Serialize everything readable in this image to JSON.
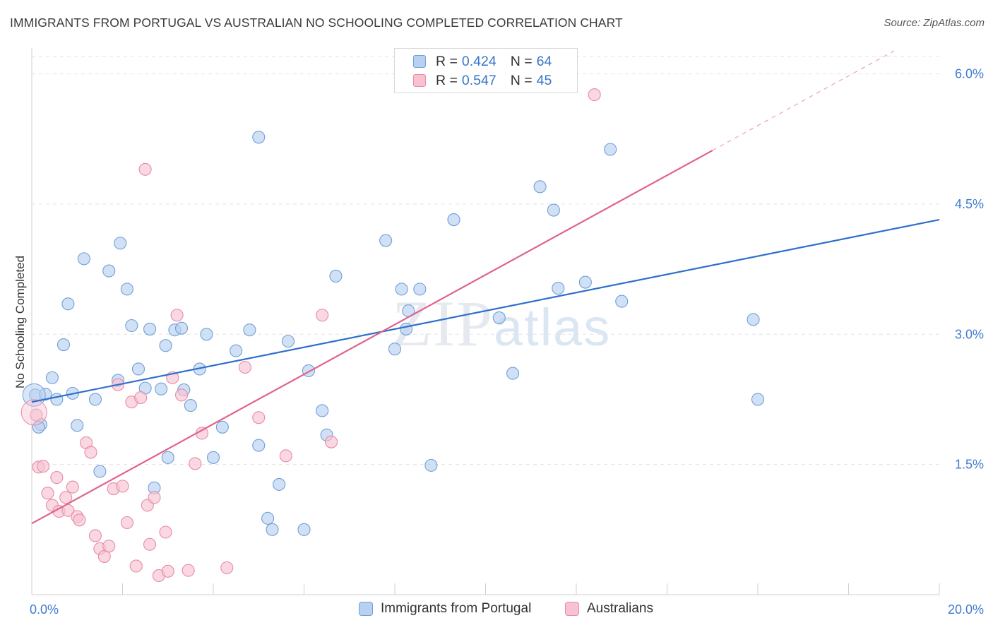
{
  "title": "IMMIGRANTS FROM PORTUGAL VS AUSTRALIAN NO SCHOOLING COMPLETED CORRELATION CHART",
  "source": "Source: ZipAtlas.com",
  "watermark": {
    "zip": "ZIP",
    "atlas": "atlas"
  },
  "legend": [
    {
      "r_label": "R =",
      "r_value": "0.424",
      "n_label": "N =",
      "n_value": "64"
    },
    {
      "r_label": "R =",
      "r_value": "0.547",
      "n_label": "N =",
      "n_value": "45"
    }
  ],
  "bottom_legend": [
    "Immigrants from Portugal",
    "Australians"
  ],
  "colors": {
    "blue_fill": "#b9d1f0",
    "blue_stroke": "#6f9fd9",
    "blue_line": "#2e6fcc",
    "pink_fill": "#f7c3d2",
    "pink_stroke": "#e88aa6",
    "pink_line": "#e0628c",
    "axis_text": "#3f7bd1",
    "grid": "#e3e3e3"
  },
  "chart_data": {
    "type": "scatter",
    "title": "IMMIGRANTS FROM PORTUGAL VS AUSTRALIAN NO SCHOOLING COMPLETED CORRELATION CHART",
    "xlabel": "",
    "ylabel": "No Schooling Completed",
    "xlim": [
      0,
      20
    ],
    "ylim": [
      0,
      6.2
    ],
    "x_tick_labels": [
      "0.0%",
      "20.0%"
    ],
    "y_ticks": [
      1.5,
      3.0,
      4.5,
      6.0
    ],
    "y_tick_labels": [
      "1.5%",
      "3.0%",
      "4.5%",
      "6.0%"
    ],
    "grid": true,
    "legend_position": "top-center",
    "series": [
      {
        "name": "Immigrants from Portugal",
        "color": "#6f9fd9",
        "trend": {
          "x": [
            0,
            20
          ],
          "y": [
            2.22,
            4.32
          ],
          "dashed_after_x": null
        },
        "points": [
          [
            0.08,
            2.3
          ],
          [
            0.2,
            1.96
          ],
          [
            0.3,
            2.31
          ],
          [
            0.45,
            2.5
          ],
          [
            0.55,
            2.25
          ],
          [
            0.7,
            2.88
          ],
          [
            0.8,
            3.35
          ],
          [
            0.9,
            2.32
          ],
          [
            1.0,
            1.95
          ],
          [
            1.15,
            3.87
          ],
          [
            1.4,
            2.25
          ],
          [
            1.7,
            3.73
          ],
          [
            1.9,
            2.47
          ],
          [
            1.95,
            4.05
          ],
          [
            2.1,
            3.52
          ],
          [
            2.2,
            3.1
          ],
          [
            2.35,
            2.6
          ],
          [
            2.5,
            2.38
          ],
          [
            2.6,
            3.06
          ],
          [
            2.85,
            2.37
          ],
          [
            2.95,
            2.87
          ],
          [
            3.0,
            1.58
          ],
          [
            3.15,
            3.05
          ],
          [
            3.3,
            3.07
          ],
          [
            3.35,
            2.36
          ],
          [
            3.5,
            2.18
          ],
          [
            3.7,
            2.6
          ],
          [
            3.85,
            3.0
          ],
          [
            4.0,
            1.58
          ],
          [
            4.2,
            1.93
          ],
          [
            4.5,
            2.81
          ],
          [
            4.8,
            3.05
          ],
          [
            5.0,
            1.72
          ],
          [
            5.2,
            0.88
          ],
          [
            5.3,
            0.75
          ],
          [
            5.45,
            1.27
          ],
          [
            5.65,
            2.92
          ],
          [
            6.0,
            0.75
          ],
          [
            6.1,
            2.58
          ],
          [
            6.4,
            2.12
          ],
          [
            6.5,
            1.84
          ],
          [
            6.7,
            3.67
          ],
          [
            7.8,
            4.08
          ],
          [
            8.0,
            2.83
          ],
          [
            8.15,
            3.52
          ],
          [
            8.25,
            3.06
          ],
          [
            8.3,
            3.27
          ],
          [
            8.55,
            3.52
          ],
          [
            8.8,
            1.49
          ],
          [
            9.3,
            4.32
          ],
          [
            10.3,
            3.19
          ],
          [
            10.6,
            2.55
          ],
          [
            11.2,
            4.7
          ],
          [
            11.5,
            4.43
          ],
          [
            11.6,
            3.53
          ],
          [
            12.2,
            3.6
          ],
          [
            12.75,
            5.13
          ],
          [
            13.0,
            3.38
          ],
          [
            15.9,
            3.17
          ],
          [
            16.0,
            2.25
          ],
          [
            0.15,
            1.93
          ],
          [
            1.5,
            1.42
          ],
          [
            2.7,
            1.23
          ],
          [
            5.0,
            5.27
          ]
        ]
      },
      {
        "name": "Australians",
        "color": "#e88aa6",
        "trend": {
          "x": [
            0,
            20
          ],
          "y": [
            0.82,
            6.55
          ],
          "dashed_after_x": 15.0
        },
        "points": [
          [
            0.1,
            2.07
          ],
          [
            0.15,
            1.47
          ],
          [
            0.25,
            1.48
          ],
          [
            0.35,
            1.17
          ],
          [
            0.45,
            1.03
          ],
          [
            0.55,
            1.35
          ],
          [
            0.6,
            0.96
          ],
          [
            0.75,
            1.12
          ],
          [
            0.8,
            0.97
          ],
          [
            0.9,
            1.24
          ],
          [
            1.0,
            0.9
          ],
          [
            1.05,
            0.86
          ],
          [
            1.2,
            1.75
          ],
          [
            1.3,
            1.64
          ],
          [
            1.4,
            0.68
          ],
          [
            1.5,
            0.53
          ],
          [
            1.6,
            0.44
          ],
          [
            1.7,
            0.56
          ],
          [
            1.8,
            1.22
          ],
          [
            1.9,
            2.42
          ],
          [
            2.0,
            1.25
          ],
          [
            2.1,
            0.83
          ],
          [
            2.2,
            2.22
          ],
          [
            2.3,
            0.33
          ],
          [
            2.4,
            2.27
          ],
          [
            2.55,
            1.03
          ],
          [
            2.6,
            0.58
          ],
          [
            2.7,
            1.12
          ],
          [
            2.8,
            0.22
          ],
          [
            2.95,
            0.72
          ],
          [
            3.0,
            0.27
          ],
          [
            3.1,
            2.5
          ],
          [
            3.2,
            3.22
          ],
          [
            3.3,
            2.3
          ],
          [
            3.45,
            0.28
          ],
          [
            3.6,
            1.51
          ],
          [
            3.75,
            1.86
          ],
          [
            4.3,
            0.31
          ],
          [
            4.7,
            2.62
          ],
          [
            5.0,
            2.04
          ],
          [
            5.6,
            1.6
          ],
          [
            6.4,
            3.22
          ],
          [
            6.6,
            1.76
          ],
          [
            12.4,
            5.76
          ],
          [
            2.5,
            4.9
          ]
        ]
      }
    ]
  }
}
